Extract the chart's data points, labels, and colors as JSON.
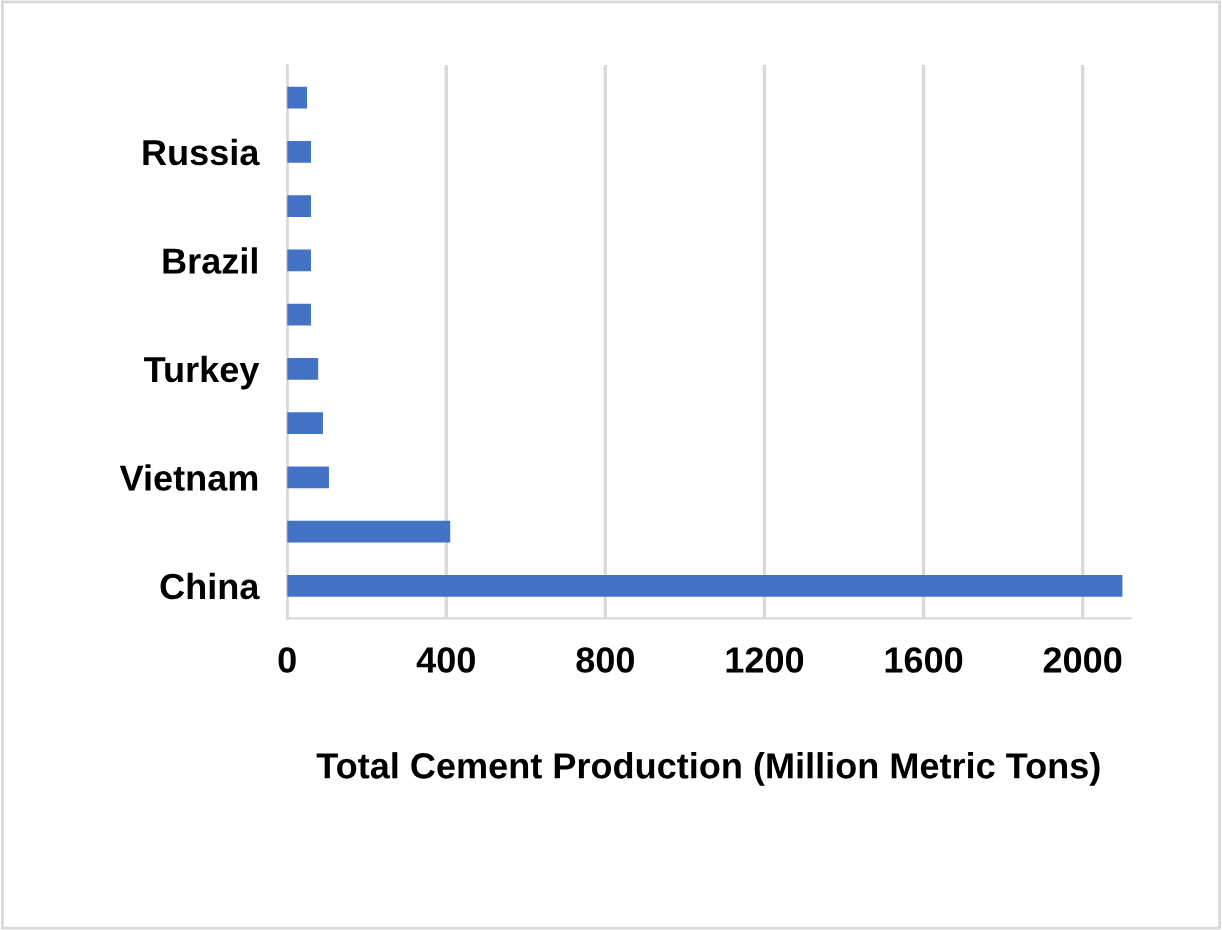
{
  "chart_data": {
    "type": "bar",
    "orientation": "horizontal",
    "xlabel": "Total Cement Production (Million Metric Tons)",
    "categories": [
      null,
      "Russia",
      null,
      "Brazil",
      null,
      "Turkey",
      null,
      "Vietnam",
      null,
      "China"
    ],
    "values": [
      50,
      60,
      60,
      60,
      60,
      78,
      90,
      105,
      410,
      2100
    ],
    "color": "#4472c4",
    "xlim": [
      0,
      2120
    ],
    "xticks": [
      0,
      400,
      800,
      1200,
      1600,
      2000
    ],
    "grid": "x"
  }
}
